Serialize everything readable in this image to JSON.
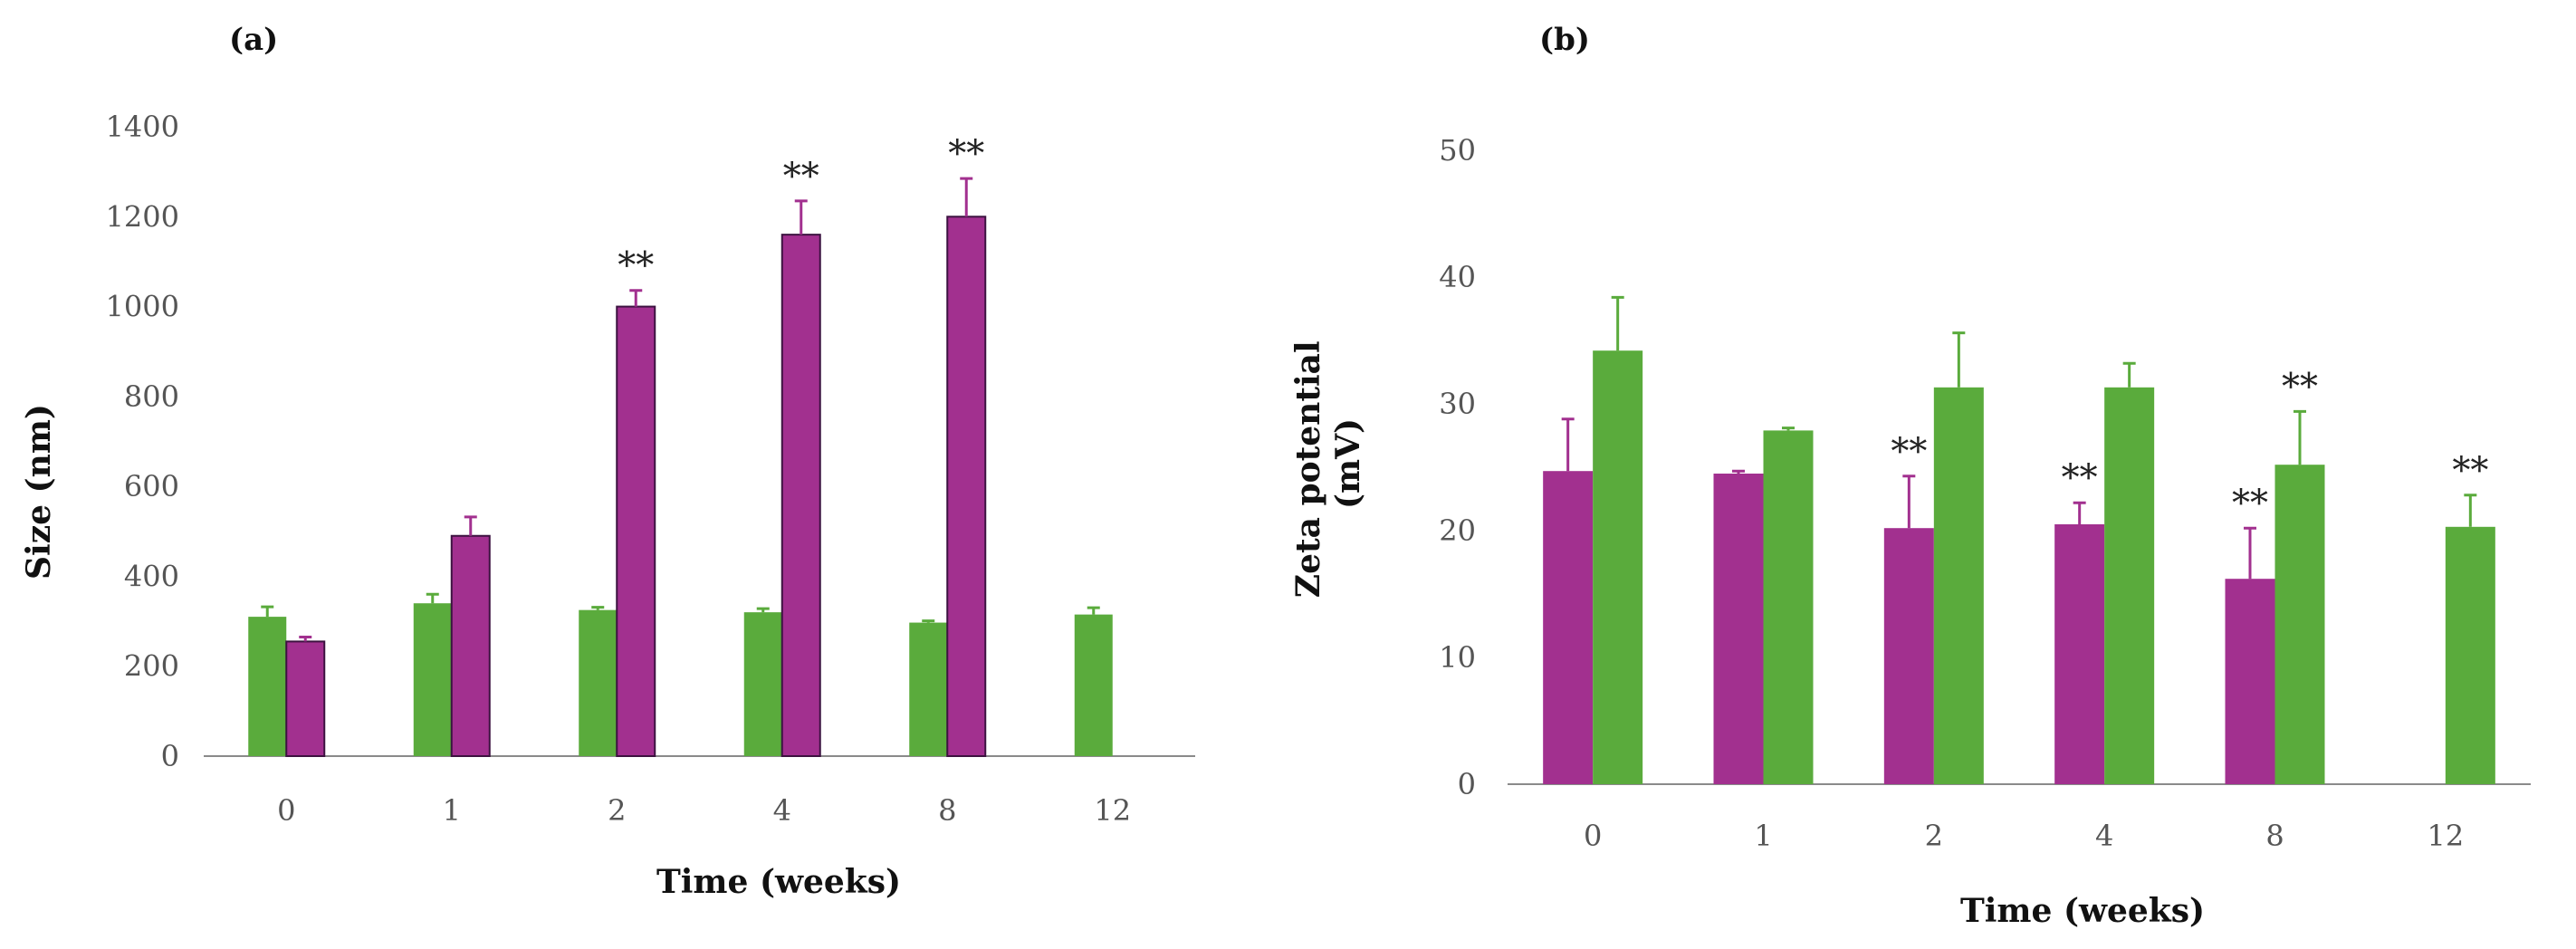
{
  "colors": {
    "magenta": "#a2308f",
    "green": "#5aab3c",
    "edge": "#3c1240"
  },
  "chart_data": [
    {
      "type": "bar",
      "panel": "(a)",
      "categories": [
        "0",
        "1",
        "2",
        "4",
        "8",
        "12"
      ],
      "xlabel": "Time (weeks)",
      "ylabel": "Size (nm)",
      "ylim": [
        0,
        1400
      ],
      "yticks": [
        "0",
        "200",
        "400",
        "600",
        "800",
        "1000",
        "1200",
        "1400"
      ],
      "series": [
        {
          "name": "green",
          "color": "#5aab3c",
          "values": [
            310,
            340,
            325,
            320,
            297,
            315
          ],
          "errors": [
            22,
            20,
            6,
            8,
            4,
            15
          ]
        },
        {
          "name": "magenta",
          "color": "#a2308f",
          "values": [
            255,
            490,
            1000,
            1160,
            1200,
            null
          ],
          "errors": [
            10,
            42,
            36,
            75,
            85,
            null
          ]
        }
      ],
      "annotations": [
        {
          "category": "2",
          "series": "magenta",
          "text": "**"
        },
        {
          "category": "4",
          "series": "magenta",
          "text": "**"
        },
        {
          "category": "8",
          "series": "magenta",
          "text": "**"
        }
      ]
    },
    {
      "type": "bar",
      "panel": "(b)",
      "categories": [
        "0",
        "1",
        "2",
        "4",
        "8",
        "12"
      ],
      "xlabel": "Time (weeks)",
      "ylabel": "Zeta potential (mV)",
      "ylim": [
        0,
        50
      ],
      "yticks": [
        "0",
        "10",
        "20",
        "30",
        "40",
        "50"
      ],
      "series": [
        {
          "name": "magenta",
          "color": "#a2308f",
          "values": [
            24.7,
            24.5,
            20.2,
            20.5,
            16.2,
            null
          ],
          "errors": [
            4.1,
            0.2,
            4.1,
            1.7,
            4,
            null
          ]
        },
        {
          "name": "green",
          "color": "#5aab3c",
          "values": [
            34.2,
            27.9,
            31.3,
            31.3,
            25.2,
            20.3
          ],
          "errors": [
            4.2,
            0.2,
            4.3,
            1.9,
            4.2,
            2.5
          ]
        }
      ],
      "annotations": [
        {
          "category": "2",
          "series": "magenta",
          "text": "**"
        },
        {
          "category": "4",
          "series": "magenta",
          "text": "**"
        },
        {
          "category": "8",
          "series": "magenta",
          "text": "**"
        },
        {
          "category": "8",
          "series": "green",
          "text": "**"
        },
        {
          "category": "12",
          "series": "green",
          "text": "**"
        }
      ]
    }
  ]
}
